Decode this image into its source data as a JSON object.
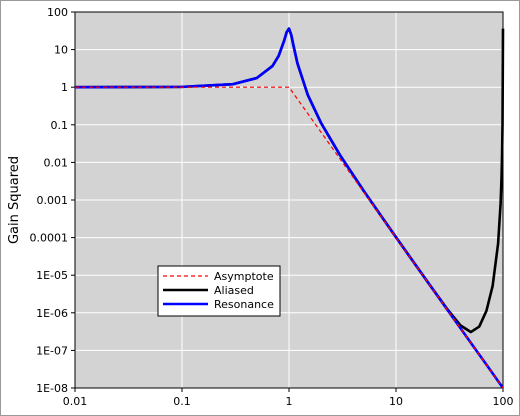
{
  "chart_data": {
    "type": "line",
    "y_label": "Gain Squared",
    "xscale": "log",
    "yscale": "log",
    "grid": true,
    "legend": "lower left",
    "x": [
      0.01,
      0.1,
      0.3,
      0.5,
      0.7,
      0.8,
      0.9,
      0.95,
      1,
      1.05,
      1.1,
      1.2,
      1.5,
      2,
      3,
      5,
      10,
      20,
      30,
      40,
      50,
      60,
      70,
      80,
      90,
      95,
      97,
      98,
      99,
      100
    ],
    "series": [
      {
        "name": "Asymptote",
        "color": "#ff0000",
        "line_style": "dashed",
        "values": [
          1,
          1,
          1,
          1,
          1,
          1,
          1,
          1,
          1,
          0.8227,
          0.683,
          0.4823,
          0.1975,
          0.0625,
          0.01235,
          0.0016,
          0.0001,
          6.25e-06,
          1.235e-06,
          3.906e-07,
          1.6e-07,
          7.72e-08,
          4.16e-08,
          2.44e-08,
          1.524e-08,
          1.228e-08,
          1.131e-08,
          1.083e-08,
          1.04e-08,
          1e-08
        ]
      },
      {
        "name": "Aliased",
        "color": "#000000",
        "line_style": "solid",
        "values": [
          1,
          1.02,
          1.204,
          1.756,
          3.655,
          6.79,
          17.1,
          29.05,
          36.2,
          24.4,
          12.9,
          4.29,
          0.616,
          0.1098,
          0.01556,
          0.001734,
          0.000102,
          6.3e-06,
          1.276e-06,
          4.63e-07,
          3.08e-07,
          4.31e-07,
          1.13e-06,
          5.19e-06,
          6.94e-05,
          0.000816,
          0.00444,
          0.01556,
          0.1098,
          36.2
        ]
      },
      {
        "name": "Resonance",
        "color": "#0000ff",
        "line_style": "solid",
        "values": [
          1,
          1.02,
          1.204,
          1.756,
          3.655,
          6.79,
          17.1,
          29.05,
          36.2,
          24.4,
          12.9,
          4.29,
          0.616,
          0.1098,
          0.01556,
          0.001734,
          0.000102,
          6.28e-06,
          1.237e-06,
          3.91e-07,
          1.6e-07,
          7.72e-08,
          4.17e-08,
          2.44e-08,
          1.52e-08,
          1.23e-08,
          1.13e-08,
          1.08e-08,
          1.04e-08,
          1e-08
        ]
      }
    ],
    "xlim": [
      0.01,
      100
    ],
    "xticks": [
      0.01,
      0.1,
      1,
      10,
      100
    ],
    "ylim": [
      1e-08,
      100
    ],
    "yticks": [
      {
        "value": 1e-08,
        "label": "1E-08"
      },
      {
        "value": 1e-07,
        "label": "1E-07"
      },
      {
        "value": 1e-06,
        "label": "1E-06"
      },
      {
        "value": 1e-05,
        "label": "1E-05"
      },
      0.0001,
      0.001,
      0.01,
      0.1,
      1,
      10,
      100
    ]
  }
}
